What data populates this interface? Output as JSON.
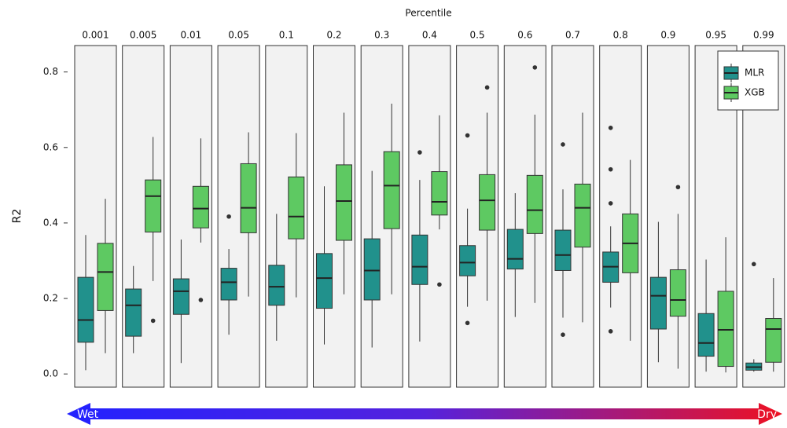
{
  "chart_data": {
    "type": "box",
    "x_label": "Percentile",
    "y_label": "R2",
    "categories": [
      "0.001",
      "0.005",
      "0.01",
      "0.05",
      "0.1",
      "0.2",
      "0.3",
      "0.4",
      "0.5",
      "0.6",
      "0.7",
      "0.8",
      "0.9",
      "0.95",
      "0.99"
    ],
    "ylim": [
      -0.035,
      0.87
    ],
    "yticks": [
      {
        "value": 0,
        "label": "0.0"
      },
      0.2,
      0.4,
      0.6,
      0.8
    ],
    "legend": "top-right",
    "annotations": [
      "Wet",
      "Dry"
    ],
    "series": [
      {
        "name": "MLR",
        "color": "#21918c",
        "boxes": [
          {
            "low": 0.01,
            "q1": 0.084,
            "median": 0.143,
            "q3": 0.256,
            "high": 0.368,
            "outliers": []
          },
          {
            "low": 0.055,
            "q1": 0.1,
            "median": 0.182,
            "q3": 0.225,
            "high": 0.286,
            "outliers": []
          },
          {
            "low": 0.029,
            "q1": 0.158,
            "median": 0.219,
            "q3": 0.252,
            "high": 0.356,
            "outliers": []
          },
          {
            "low": 0.104,
            "q1": 0.196,
            "median": 0.243,
            "q3": 0.28,
            "high": 0.331,
            "outliers": [
              0.417
            ]
          },
          {
            "low": 0.088,
            "q1": 0.182,
            "median": 0.231,
            "q3": 0.288,
            "high": 0.424,
            "outliers": []
          },
          {
            "low": 0.078,
            "q1": 0.174,
            "median": 0.254,
            "q3": 0.319,
            "high": 0.497,
            "outliers": []
          },
          {
            "low": 0.07,
            "q1": 0.196,
            "median": 0.274,
            "q3": 0.358,
            "high": 0.538,
            "outliers": []
          },
          {
            "low": 0.086,
            "q1": 0.237,
            "median": 0.284,
            "q3": 0.368,
            "high": 0.514,
            "outliers": [
              0.587
            ]
          },
          {
            "low": 0.178,
            "q1": 0.26,
            "median": 0.295,
            "q3": 0.34,
            "high": 0.438,
            "outliers": [
              0.135,
              0.632
            ]
          },
          {
            "low": 0.151,
            "q1": 0.278,
            "median": 0.305,
            "q3": 0.383,
            "high": 0.479,
            "outliers": []
          },
          {
            "low": 0.149,
            "q1": 0.274,
            "median": 0.315,
            "q3": 0.381,
            "high": 0.489,
            "outliers": [
              0.104,
              0.608
            ]
          },
          {
            "low": 0.176,
            "q1": 0.243,
            "median": 0.284,
            "q3": 0.323,
            "high": 0.391,
            "outliers": [
              0.113,
              0.452,
              0.542,
              0.652
            ]
          },
          {
            "low": 0.031,
            "q1": 0.119,
            "median": 0.207,
            "q3": 0.256,
            "high": 0.403,
            "outliers": []
          },
          {
            "low": 0.006,
            "q1": 0.047,
            "median": 0.082,
            "q3": 0.16,
            "high": 0.303,
            "outliers": []
          },
          {
            "low": 0.006,
            "q1": 0.01,
            "median": 0.018,
            "q3": 0.029,
            "high": 0.039,
            "outliers": [
              0.291
            ]
          }
        ]
      },
      {
        "name": "XGB",
        "color": "#5ec962",
        "boxes": [
          {
            "low": 0.055,
            "q1": 0.168,
            "median": 0.27,
            "q3": 0.346,
            "high": 0.464,
            "outliers": []
          },
          {
            "low": 0.246,
            "q1": 0.376,
            "median": 0.471,
            "q3": 0.514,
            "high": 0.628,
            "outliers": [
              0.141
            ]
          },
          {
            "low": 0.348,
            "q1": 0.387,
            "median": 0.438,
            "q3": 0.497,
            "high": 0.624,
            "outliers": [
              0.196
            ]
          },
          {
            "low": 0.205,
            "q1": 0.374,
            "median": 0.44,
            "q3": 0.557,
            "high": 0.64,
            "outliers": []
          },
          {
            "low": 0.203,
            "q1": 0.358,
            "median": 0.417,
            "q3": 0.522,
            "high": 0.638,
            "outliers": []
          },
          {
            "low": 0.211,
            "q1": 0.354,
            "median": 0.458,
            "q3": 0.554,
            "high": 0.692,
            "outliers": []
          },
          {
            "low": 0.211,
            "q1": 0.385,
            "median": 0.499,
            "q3": 0.589,
            "high": 0.716,
            "outliers": []
          },
          {
            "low": 0.383,
            "q1": 0.421,
            "median": 0.456,
            "q3": 0.536,
            "high": 0.685,
            "outliers": [
              0.237
            ]
          },
          {
            "low": 0.194,
            "q1": 0.381,
            "median": 0.46,
            "q3": 0.528,
            "high": 0.692,
            "outliers": [
              0.759
            ]
          },
          {
            "low": 0.188,
            "q1": 0.372,
            "median": 0.434,
            "q3": 0.526,
            "high": 0.687,
            "outliers": [
              0.812
            ]
          },
          {
            "low": 0.137,
            "q1": 0.336,
            "median": 0.44,
            "q3": 0.503,
            "high": 0.692,
            "outliers": []
          },
          {
            "low": 0.088,
            "q1": 0.268,
            "median": 0.346,
            "q3": 0.424,
            "high": 0.567,
            "outliers": []
          },
          {
            "low": 0.014,
            "q1": 0.153,
            "median": 0.196,
            "q3": 0.276,
            "high": 0.424,
            "outliers": [
              0.495
            ]
          },
          {
            "low": 0.004,
            "q1": 0.02,
            "median": 0.117,
            "q3": 0.219,
            "high": 0.362,
            "outliers": []
          },
          {
            "low": 0.006,
            "q1": 0.031,
            "median": 0.119,
            "q3": 0.147,
            "high": 0.254,
            "outliers": []
          }
        ]
      }
    ]
  }
}
